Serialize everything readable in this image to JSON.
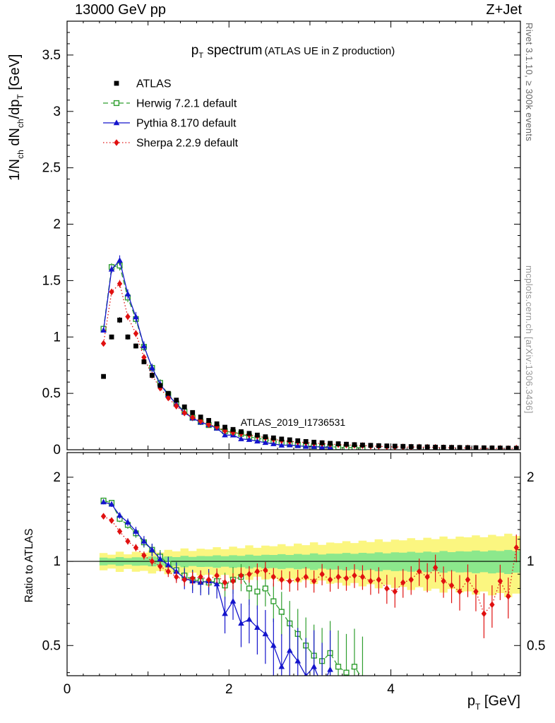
{
  "header": {
    "left": "13000 GeV pp",
    "right": "Z+Jet"
  },
  "side_texts": {
    "rivet": "Rivet 3.1.10, ≥ 300k events",
    "mcplots": "mcplots.cern.ch [arXiv:1306.3436]"
  },
  "chart_data": {
    "type": "line",
    "title_segments": [
      {
        "t": "p"
      },
      {
        "s": "T"
      },
      {
        "t": " spectrum"
      }
    ],
    "subtitle": "(ATLAS UE in Z production)",
    "watermark": "ATLAS_2019_I1736531",
    "xlabel_segments": [
      {
        "t": "p"
      },
      {
        "s": "T"
      },
      {
        "t": " [GeV]"
      }
    ],
    "ylabel_segments": [
      {
        "t": "1/N"
      },
      {
        "s": "ch"
      },
      {
        "t": " dN"
      },
      {
        "s": "ch"
      },
      {
        "t": "/dp"
      },
      {
        "s": "T"
      },
      {
        "t": " [GeV]"
      }
    ],
    "ratio_ylabel": "Ratio to ATLAS",
    "xlim": [
      0,
      5.6
    ],
    "ylim_main": [
      0,
      3.8
    ],
    "ylim_ratio": [
      0.39,
      2.45
    ],
    "ratio_scale": "log",
    "grid": false,
    "legend_position": "top-left-inside",
    "xtick_labels": [
      {
        "v": 0,
        "t": "0"
      },
      {
        "v": 2,
        "t": "2"
      },
      {
        "v": 4,
        "t": "4"
      }
    ],
    "ytick_labels_main": [
      {
        "v": 0,
        "t": "0"
      },
      {
        "v": 0.5,
        "t": "0.5"
      },
      {
        "v": 1,
        "t": "1"
      },
      {
        "v": 1.5,
        "t": "1.5"
      },
      {
        "v": 2,
        "t": "2"
      },
      {
        "v": 2.5,
        "t": "2.5"
      },
      {
        "v": 3,
        "t": "3"
      },
      {
        "v": 3.5,
        "t": "3.5"
      }
    ],
    "ytick_labels_ratio": [
      {
        "v": 0.5,
        "t": "0.5"
      },
      {
        "v": 1,
        "t": "1"
      },
      {
        "v": 2,
        "t": "2"
      }
    ],
    "x": [
      0.45,
      0.55,
      0.65,
      0.75,
      0.85,
      0.95,
      1.05,
      1.15,
      1.25,
      1.35,
      1.45,
      1.55,
      1.65,
      1.75,
      1.85,
      1.95,
      2.05,
      2.15,
      2.25,
      2.35,
      2.45,
      2.55,
      2.65,
      2.75,
      2.85,
      2.95,
      3.05,
      3.15,
      3.25,
      3.35,
      3.45,
      3.55,
      3.65,
      3.75,
      3.85,
      3.95,
      4.05,
      4.15,
      4.25,
      4.35,
      4.45,
      4.55,
      4.65,
      4.75,
      4.85,
      4.95,
      5.05,
      5.15,
      5.25,
      5.35,
      5.45,
      5.55
    ],
    "bin_width": 0.1,
    "atlas": {
      "label": "ATLAS",
      "color": "#000000",
      "marker": "square-filled",
      "y": [
        0.65,
        1.0,
        1.15,
        1.0,
        0.92,
        0.78,
        0.66,
        0.57,
        0.5,
        0.44,
        0.38,
        0.33,
        0.29,
        0.26,
        0.23,
        0.2,
        0.18,
        0.16,
        0.145,
        0.13,
        0.115,
        0.105,
        0.095,
        0.088,
        0.08,
        0.073,
        0.067,
        0.062,
        0.057,
        0.053,
        0.049,
        0.045,
        0.042,
        0.039,
        0.036,
        0.034,
        0.032,
        0.03,
        0.028,
        0.026,
        0.025,
        0.023,
        0.022,
        0.021,
        0.02,
        0.019,
        0.018,
        0.017,
        0.016,
        0.015,
        0.014,
        0.013
      ],
      "err_model": {
        "base": 0.02,
        "slope": 0.001
      }
    },
    "series": [
      {
        "name": "Herwig 7.2.1 default",
        "color": "#2f9e2f",
        "line": "dashed",
        "marker": "square-open",
        "ratio": [
          1.65,
          1.62,
          1.42,
          1.35,
          1.26,
          1.17,
          1.1,
          1.04,
          0.98,
          0.93,
          0.89,
          0.86,
          0.85,
          0.84,
          0.85,
          0.82,
          0.86,
          0.88,
          0.8,
          0.78,
          0.8,
          0.72,
          0.66,
          0.6,
          0.55,
          0.5,
          0.46,
          0.44,
          0.47,
          0.42,
          0.4,
          0.42,
          0.38,
          null,
          null,
          null,
          null,
          null,
          null,
          null,
          null,
          null,
          null,
          null,
          null,
          null,
          null,
          null,
          null,
          null,
          null,
          null
        ],
        "err_model": {
          "base": 0.03,
          "slope": 0.004
        }
      },
      {
        "name": "Pythia 8.170 default",
        "color": "#1414cc",
        "line": "solid",
        "marker": "triangle-filled",
        "ratio": [
          1.63,
          1.6,
          1.46,
          1.38,
          1.28,
          1.18,
          1.1,
          1.02,
          0.97,
          0.92,
          0.87,
          0.85,
          0.84,
          0.85,
          0.83,
          0.65,
          0.72,
          0.6,
          0.62,
          0.58,
          0.55,
          0.5,
          0.42,
          0.48,
          0.44,
          0.39,
          0.42,
          0.36,
          0.41,
          null,
          null,
          null,
          null,
          null,
          null,
          null,
          null,
          null,
          null,
          null,
          null,
          null,
          null,
          null,
          null,
          null,
          null,
          null,
          null,
          null,
          null,
          null
        ],
        "err_model": {
          "base": 0.03,
          "slope": 0.0045
        }
      },
      {
        "name": "Sherpa 2.2.9 default",
        "color": "#e01010",
        "line": "dotted",
        "marker": "diamond-filled",
        "ratio": [
          1.45,
          1.4,
          1.28,
          1.18,
          1.12,
          1.05,
          1.0,
          0.96,
          0.92,
          0.88,
          0.86,
          0.87,
          0.88,
          0.86,
          0.89,
          0.84,
          0.85,
          0.89,
          0.9,
          0.92,
          0.93,
          0.88,
          0.86,
          0.85,
          0.86,
          0.88,
          0.85,
          0.9,
          0.86,
          0.88,
          0.87,
          0.89,
          0.88,
          0.85,
          0.86,
          0.8,
          0.78,
          0.84,
          0.86,
          0.92,
          0.88,
          0.95,
          0.85,
          0.82,
          0.78,
          0.86,
          0.78,
          0.65,
          0.7,
          0.85,
          0.75,
          1.12
        ],
        "err_model": {
          "base": 0.025,
          "slope": 0.002
        }
      }
    ],
    "bands": {
      "yellow": {
        "color": "#fbf680",
        "half_width": [
          0.071,
          0.057,
          0.083,
          0.06,
          0.082,
          0.075,
          0.095,
          0.076,
          0.1,
          0.086,
          0.112,
          0.089,
          0.11,
          0.104,
          0.124,
          0.105,
          0.129,
          0.114,
          0.141,
          0.118,
          0.139,
          0.133,
          0.152,
          0.134,
          0.158,
          0.143,
          0.17,
          0.146,
          0.168,
          0.162,
          0.181,
          0.163,
          0.186,
          0.172,
          0.199,
          0.175,
          0.197,
          0.19,
          0.21,
          0.192,
          0.215,
          0.201,
          0.227,
          0.204,
          0.226,
          0.219,
          0.239,
          0.22,
          0.244,
          0.23,
          0.256,
          0.233
        ]
      },
      "green": {
        "color": "#8ce88c",
        "half_width": [
          0.032,
          0.026,
          0.036,
          0.027,
          0.035,
          0.033,
          0.04,
          0.033,
          0.042,
          0.036,
          0.047,
          0.037,
          0.045,
          0.044,
          0.051,
          0.043,
          0.052,
          0.047,
          0.057,
          0.048,
          0.056,
          0.054,
          0.061,
          0.054,
          0.063,
          0.057,
          0.068,
          0.058,
          0.066,
          0.065,
          0.072,
          0.064,
          0.073,
          0.068,
          0.078,
          0.068,
          0.077,
          0.075,
          0.082,
          0.075,
          0.084,
          0.078,
          0.089,
          0.079,
          0.087,
          0.085,
          0.093,
          0.085,
          0.094,
          0.089,
          0.099,
          0.089
        ]
      }
    }
  }
}
